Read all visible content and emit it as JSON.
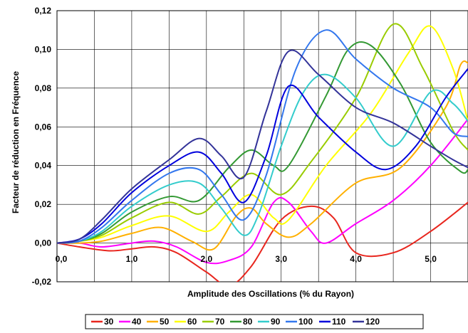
{
  "chart_data": {
    "type": "line",
    "title": "",
    "xlabel": "Amplitude des Oscillations (% du Rayon)",
    "ylabel": "Facteur de réduction en Fréquence",
    "xlim": [
      0,
      5.5
    ],
    "ylim": [
      -0.02,
      0.12
    ],
    "xticks": [
      0,
      1,
      2,
      3,
      4,
      5
    ],
    "xtick_labels": [
      "0,0",
      "1,0",
      "2,0",
      "3,0",
      "4,0",
      "5,0"
    ],
    "yticks": [
      -0.02,
      0,
      0.02,
      0.04,
      0.06,
      0.08,
      0.1,
      0.12
    ],
    "ytick_labels": [
      "-0,02",
      "0,00",
      "0,02",
      "0,04",
      "0,06",
      "0,08",
      "0,10",
      "0,12"
    ],
    "grid": true,
    "legend_position": "bottom",
    "series": [
      {
        "name": "30",
        "color": "#e8261e",
        "points": [
          [
            0,
            0
          ],
          [
            0.3,
            -0.002
          ],
          [
            0.7,
            -0.004
          ],
          [
            1.0,
            -0.003
          ],
          [
            1.3,
            -0.002
          ],
          [
            1.6,
            -0.005
          ],
          [
            2.0,
            -0.015
          ],
          [
            2.3,
            -0.022
          ],
          [
            2.6,
            -0.012
          ],
          [
            3.0,
            0.012
          ],
          [
            3.4,
            0.019
          ],
          [
            3.7,
            0.013
          ],
          [
            4.0,
            -0.005
          ],
          [
            4.5,
            -0.005
          ],
          [
            5.0,
            0.006
          ],
          [
            5.5,
            0.021
          ]
        ]
      },
      {
        "name": "40",
        "color": "#ff00ff",
        "points": [
          [
            0,
            0
          ],
          [
            0.3,
            0
          ],
          [
            0.6,
            -0.002
          ],
          [
            1.0,
            0
          ],
          [
            1.3,
            0.001
          ],
          [
            1.6,
            -0.002
          ],
          [
            2.0,
            -0.01
          ],
          [
            2.3,
            -0.009
          ],
          [
            2.6,
            -0.002
          ],
          [
            2.9,
            0.021
          ],
          [
            3.1,
            0.021
          ],
          [
            3.4,
            0.006
          ],
          [
            3.6,
            0
          ],
          [
            4.0,
            0.01
          ],
          [
            4.5,
            0.022
          ],
          [
            5.0,
            0.04
          ],
          [
            5.5,
            0.064
          ]
        ]
      },
      {
        "name": "50",
        "color": "#ffb000",
        "points": [
          [
            0,
            0
          ],
          [
            0.3,
            0
          ],
          [
            0.6,
            0.001
          ],
          [
            1.0,
            0.005
          ],
          [
            1.4,
            0.008
          ],
          [
            1.8,
            0.001
          ],
          [
            2.1,
            -0.003
          ],
          [
            2.4,
            0.014
          ],
          [
            2.6,
            0.018
          ],
          [
            2.8,
            0.01
          ],
          [
            3.1,
            0.003
          ],
          [
            3.4,
            0.01
          ],
          [
            4.0,
            0.031
          ],
          [
            4.6,
            0.039
          ],
          [
            5.2,
            0.07
          ],
          [
            5.4,
            0.092
          ],
          [
            5.5,
            0.093
          ]
        ]
      },
      {
        "name": "60",
        "color": "#ffff00",
        "points": [
          [
            0,
            0
          ],
          [
            0.3,
            0.001
          ],
          [
            0.6,
            0.003
          ],
          [
            1.0,
            0.009
          ],
          [
            1.5,
            0.014
          ],
          [
            2.0,
            0.006
          ],
          [
            2.3,
            0.016
          ],
          [
            2.6,
            0.025
          ],
          [
            2.9,
            0.013
          ],
          [
            3.1,
            0.012
          ],
          [
            3.6,
            0.04
          ],
          [
            4.2,
            0.067
          ],
          [
            4.7,
            0.098
          ],
          [
            5.0,
            0.112
          ],
          [
            5.3,
            0.09
          ],
          [
            5.5,
            0.063
          ]
        ]
      },
      {
        "name": "70",
        "color": "#99cc00",
        "points": [
          [
            0,
            0
          ],
          [
            0.3,
            0.001
          ],
          [
            0.6,
            0.004
          ],
          [
            1.0,
            0.013
          ],
          [
            1.5,
            0.021
          ],
          [
            1.9,
            0.015
          ],
          [
            2.2,
            0.024
          ],
          [
            2.6,
            0.036
          ],
          [
            3.0,
            0.025
          ],
          [
            3.4,
            0.042
          ],
          [
            4.0,
            0.075
          ],
          [
            4.5,
            0.113
          ],
          [
            4.9,
            0.09
          ],
          [
            5.3,
            0.058
          ],
          [
            5.5,
            0.048
          ]
        ]
      },
      {
        "name": "80",
        "color": "#339933",
        "points": [
          [
            0,
            0
          ],
          [
            0.3,
            0.001
          ],
          [
            0.6,
            0.005
          ],
          [
            1.0,
            0.016
          ],
          [
            1.5,
            0.024
          ],
          [
            1.9,
            0.022
          ],
          [
            2.3,
            0.039
          ],
          [
            2.6,
            0.048
          ],
          [
            2.9,
            0.04
          ],
          [
            3.1,
            0.04
          ],
          [
            3.6,
            0.076
          ],
          [
            3.9,
            0.1
          ],
          [
            4.2,
            0.102
          ],
          [
            4.6,
            0.082
          ],
          [
            5.0,
            0.052
          ],
          [
            5.4,
            0.037
          ],
          [
            5.5,
            0.038
          ]
        ]
      },
      {
        "name": "90",
        "color": "#33cccc",
        "points": [
          [
            0,
            0
          ],
          [
            0.3,
            0.001
          ],
          [
            0.6,
            0.006
          ],
          [
            1.0,
            0.019
          ],
          [
            1.5,
            0.03
          ],
          [
            1.9,
            0.031
          ],
          [
            2.2,
            0.018
          ],
          [
            2.5,
            0.004
          ],
          [
            2.7,
            0.015
          ],
          [
            3.0,
            0.05
          ],
          [
            3.3,
            0.078
          ],
          [
            3.6,
            0.087
          ],
          [
            4.0,
            0.075
          ],
          [
            4.5,
            0.05
          ],
          [
            5.0,
            0.078
          ],
          [
            5.3,
            0.072
          ],
          [
            5.5,
            0.063
          ]
        ]
      },
      {
        "name": "100",
        "color": "#3377ee",
        "points": [
          [
            0,
            0
          ],
          [
            0.3,
            0.001
          ],
          [
            0.6,
            0.008
          ],
          [
            1.0,
            0.022
          ],
          [
            1.5,
            0.036
          ],
          [
            1.9,
            0.038
          ],
          [
            2.2,
            0.025
          ],
          [
            2.5,
            0.012
          ],
          [
            2.8,
            0.035
          ],
          [
            3.2,
            0.09
          ],
          [
            3.6,
            0.11
          ],
          [
            4.0,
            0.095
          ],
          [
            4.5,
            0.08
          ],
          [
            5.0,
            0.07
          ],
          [
            5.3,
            0.057
          ],
          [
            5.5,
            0.055
          ]
        ]
      },
      {
        "name": "110",
        "color": "#0000dd",
        "points": [
          [
            0,
            0
          ],
          [
            0.3,
            0.002
          ],
          [
            0.6,
            0.01
          ],
          [
            1.0,
            0.026
          ],
          [
            1.5,
            0.04
          ],
          [
            1.9,
            0.047
          ],
          [
            2.2,
            0.036
          ],
          [
            2.5,
            0.021
          ],
          [
            2.8,
            0.045
          ],
          [
            3.1,
            0.081
          ],
          [
            3.5,
            0.065
          ],
          [
            4.0,
            0.047
          ],
          [
            4.4,
            0.038
          ],
          [
            4.8,
            0.05
          ],
          [
            5.2,
            0.075
          ],
          [
            5.5,
            0.09
          ]
        ]
      },
      {
        "name": "120",
        "color": "#333399",
        "points": [
          [
            0,
            0
          ],
          [
            0.3,
            0.002
          ],
          [
            0.6,
            0.012
          ],
          [
            1.0,
            0.028
          ],
          [
            1.5,
            0.043
          ],
          [
            1.9,
            0.054
          ],
          [
            2.2,
            0.045
          ],
          [
            2.5,
            0.034
          ],
          [
            2.8,
            0.068
          ],
          [
            3.1,
            0.099
          ],
          [
            3.5,
            0.087
          ],
          [
            4.0,
            0.07
          ],
          [
            4.5,
            0.062
          ],
          [
            5.0,
            0.05
          ],
          [
            5.3,
            0.043
          ],
          [
            5.5,
            0.039
          ]
        ]
      }
    ]
  }
}
